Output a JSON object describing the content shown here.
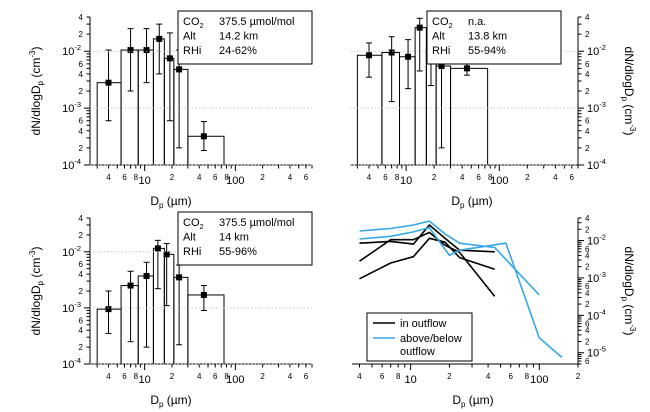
{
  "chart_data": [
    {
      "type": "bar",
      "panel": "top-left",
      "xlabel": "D",
      "xlabel_sub": "p",
      "xlabel_unit": " (µm)",
      "ylabel": "dN/dlogD",
      "ylabel_sub": "p",
      "ylabel_unit": " (cm",
      "ylabel_exp": "-3",
      "ylabel_close": ")",
      "y_axis_side": "left",
      "x_scale": "log",
      "y_scale": "log",
      "xlim": [
        2.5,
        700
      ],
      "ylim": [
        0.0001,
        0.04
      ],
      "grid": "dotted lines at decades",
      "info_box": [
        {
          "label": "CO",
          "label_sub": "2",
          "value": "375.5 µmol/mol"
        },
        {
          "label": "Alt",
          "value": "14.2 km"
        },
        {
          "label": "RHi",
          "value": "24-62%"
        }
      ],
      "bins": [
        {
          "x0": 3,
          "x1": 5.5,
          "y": 0.0028,
          "center": 4,
          "err_low": 0.0006,
          "err_high": 0.0105
        },
        {
          "x0": 5.5,
          "x1": 8.5,
          "y": 0.0105,
          "center": 7,
          "err_low": 0.002,
          "err_high": 0.025
        },
        {
          "x0": 8.5,
          "x1": 12.5,
          "y": 0.0105,
          "center": 10.5,
          "err_low": 0.0028,
          "err_high": 0.025
        },
        {
          "x0": 12.5,
          "x1": 16.5,
          "y": 0.0165,
          "center": 14.5,
          "err_low": 0.004,
          "err_high": 0.03
        },
        {
          "x0": 16.5,
          "x1": 21,
          "y": 0.0075,
          "center": 19,
          "err_low": 0.0006,
          "err_high": 0.021
        },
        {
          "x0": 21,
          "x1": 30,
          "y": 0.0048,
          "center": 24,
          "err_low": 0.0002,
          "err_high": 0.0105
        },
        {
          "x0": 30,
          "x1": 75,
          "y": 0.00032,
          "center": 45,
          "err_low": 0.00018,
          "err_high": 0.00058
        }
      ]
    },
    {
      "type": "bar",
      "panel": "top-right",
      "xlabel": "D",
      "xlabel_sub": "p",
      "xlabel_unit": " (µm)",
      "ylabel": "dN/dlogD",
      "ylabel_sub": "p",
      "ylabel_unit": " (cm",
      "ylabel_exp": "-3",
      "ylabel_close": ")",
      "y_axis_side": "right",
      "x_scale": "log",
      "y_scale": "log",
      "xlim": [
        2.5,
        700
      ],
      "ylim": [
        0.0001,
        0.04
      ],
      "grid": "dotted lines at decades",
      "info_box": [
        {
          "label": "CO",
          "label_sub": "2",
          "value": "n.a."
        },
        {
          "label": "Alt",
          "value": "13.8 km"
        },
        {
          "label": "RHi",
          "value": "55-94%"
        }
      ],
      "bins": [
        {
          "x0": 3,
          "x1": 5.5,
          "y": 0.0085,
          "center": 4,
          "err_low": 0.0035,
          "err_high": 0.014
        },
        {
          "x0": 5.5,
          "x1": 8.5,
          "y": 0.0095,
          "center": 7,
          "err_low": 0.0013,
          "err_high": 0.018
        },
        {
          "x0": 8.5,
          "x1": 12.5,
          "y": 0.008,
          "center": 10.5,
          "err_low": 0.0022,
          "err_high": 0.016
        },
        {
          "x0": 12.5,
          "x1": 16.5,
          "y": 0.026,
          "center": 14,
          "err_low": 0.0045,
          "err_high": 0.038
        },
        {
          "x0": 16.5,
          "x1": 21,
          "y": 0.0115,
          "center": 18.5,
          "err_low": 0.0025,
          "err_high": 0.024
        },
        {
          "x0": 21,
          "x1": 30,
          "y": 0.0055,
          "center": 24,
          "err_low": 0.0002,
          "err_high": 0.012
        },
        {
          "x0": 30,
          "x1": 75,
          "y": 0.005,
          "center": 45,
          "err_low": 0.0038,
          "err_high": 0.0065
        }
      ]
    },
    {
      "type": "bar",
      "panel": "bottom-left",
      "xlabel": "D",
      "xlabel_sub": "p",
      "xlabel_unit": " (µm)",
      "ylabel": "dN/dlogD",
      "ylabel_sub": "p",
      "ylabel_unit": " (cm",
      "ylabel_exp": "-3",
      "ylabel_close": ")",
      "y_axis_side": "left",
      "x_scale": "log",
      "y_scale": "log",
      "xlim": [
        2.5,
        700
      ],
      "ylim": [
        0.0001,
        0.04
      ],
      "grid": "dotted lines at decades",
      "info_box": [
        {
          "label": "CO",
          "label_sub": "2",
          "value": "375.5 µmol/mol"
        },
        {
          "label": "Alt",
          "value": "14 km"
        },
        {
          "label": "RHi",
          "value": "55-96%"
        }
      ],
      "bins": [
        {
          "x0": 3,
          "x1": 5.5,
          "y": 0.00095,
          "center": 4,
          "err_low": 0.00035,
          "err_high": 0.002
        },
        {
          "x0": 5.5,
          "x1": 8.5,
          "y": 0.0025,
          "center": 7,
          "err_low": 0.00025,
          "err_high": 0.0045
        },
        {
          "x0": 8.5,
          "x1": 12.5,
          "y": 0.0037,
          "center": 10.5,
          "err_low": 0.0002,
          "err_high": 0.0065
        },
        {
          "x0": 12.5,
          "x1": 16.5,
          "y": 0.0115,
          "center": 14,
          "err_low": 0.0022,
          "err_high": 0.016
        },
        {
          "x0": 16.5,
          "x1": 21,
          "y": 0.009,
          "center": 17.5,
          "err_low": 0.0011,
          "err_high": 0.014
        },
        {
          "x0": 21,
          "x1": 30,
          "y": 0.0035,
          "center": 24,
          "err_low": 0.00022,
          "err_high": 0.0058
        },
        {
          "x0": 30,
          "x1": 75,
          "y": 0.0017,
          "center": 45,
          "err_low": 0.0009,
          "err_high": 0.0025
        }
      ]
    },
    {
      "type": "line",
      "panel": "bottom-right",
      "xlabel": "D",
      "xlabel_sub": "p",
      "xlabel_unit": " (µm)",
      "ylabel": "dN/dlogD",
      "ylabel_sub": "p",
      "ylabel_unit": " (cm",
      "ylabel_exp": "-3",
      "ylabel_close": ")",
      "y_axis_side": "right",
      "x_scale": "log",
      "y_scale": "log",
      "xlim": [
        3.5,
        200
      ],
      "ylim": [
        5e-06,
        0.04
      ],
      "legend": {
        "placement": "lower-left",
        "entries": [
          {
            "label": "in outflow",
            "color": "#000000"
          },
          {
            "label": "above/below",
            "label2": "outflow",
            "color": "#35a7e6"
          }
        ]
      },
      "series": [
        {
          "group": "in outflow",
          "color": "#000000",
          "x": [
            4,
            7,
            10.5,
            14,
            18.5,
            24,
            45
          ],
          "y": [
            0.0085,
            0.0095,
            0.008,
            0.026,
            0.0115,
            0.0055,
            0.005
          ]
        },
        {
          "group": "in outflow",
          "color": "#000000",
          "x": [
            4,
            7,
            10.5,
            14,
            18.5,
            24,
            45
          ],
          "y": [
            0.0028,
            0.0105,
            0.0105,
            0.0165,
            0.0075,
            0.0048,
            0.00032
          ]
        },
        {
          "group": "in outflow",
          "color": "#000000",
          "x": [
            4,
            7,
            10.5,
            14,
            18.5,
            24,
            45
          ],
          "y": [
            0.00095,
            0.0025,
            0.0037,
            0.0115,
            0.009,
            0.0035,
            0.0017
          ]
        },
        {
          "group": "above/below outflow",
          "color": "#35a7e6",
          "x": [
            4,
            7,
            10.5,
            14,
            18.5,
            24,
            45,
            100
          ],
          "y": [
            0.018,
            0.021,
            0.026,
            0.033,
            0.015,
            0.0085,
            0.0065,
            0.00035
          ]
        },
        {
          "group": "above/below outflow",
          "color": "#35a7e6",
          "x": [
            4,
            7,
            10.5,
            14,
            20,
            24,
            55,
            100,
            150
          ],
          "y": [
            0.011,
            0.013,
            0.017,
            0.022,
            0.004,
            0.0055,
            0.0085,
            2.5e-05,
            7.5e-06
          ]
        }
      ]
    }
  ]
}
